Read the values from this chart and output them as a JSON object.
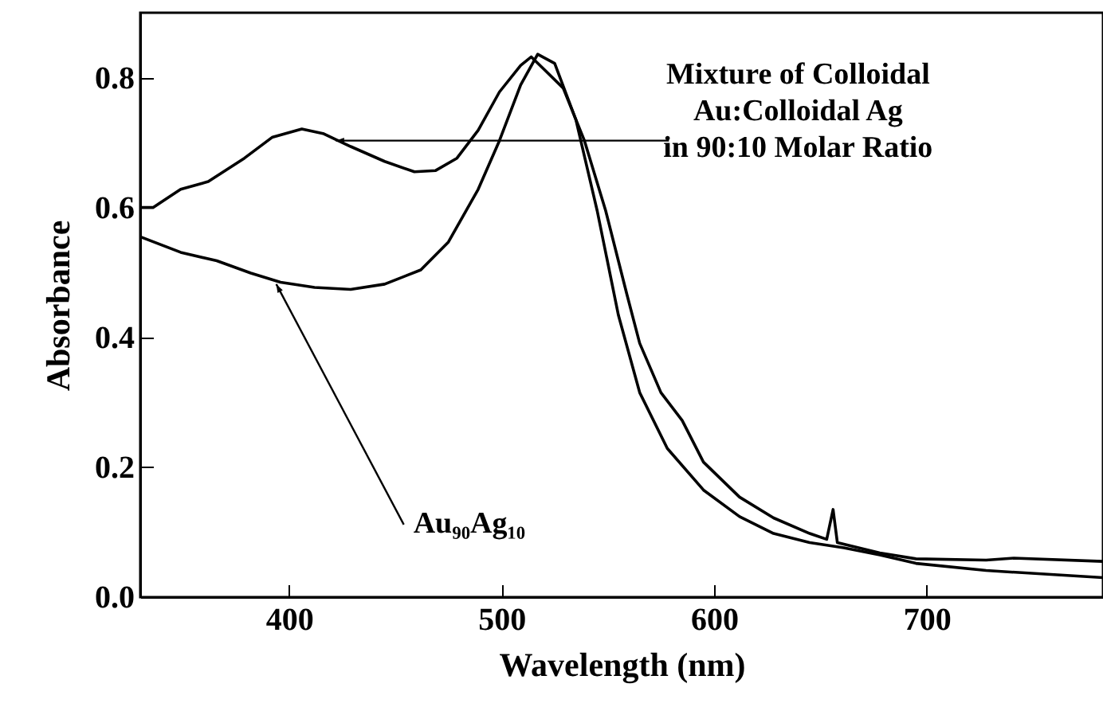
{
  "chart_data": {
    "type": "line",
    "xlabel": "Wavelength (nm)",
    "ylabel": "Absorbance",
    "xlim": [
      330,
      783
    ],
    "xticks": [
      400,
      500,
      600,
      700
    ],
    "ylim": [
      0,
      0.9
    ],
    "yticks": [
      {
        "value": 0,
        "label": "0.0"
      },
      {
        "value": 0.2,
        "label": "0.2"
      },
      {
        "value": 0.4,
        "label": "0.4"
      },
      {
        "value": 0.6,
        "label": "0.6"
      },
      {
        "value": 0.8,
        "label": "0.8"
      }
    ],
    "grid": false,
    "marker": "none",
    "line_style": "solid",
    "series": [
      {
        "color": "#000000",
        "x": [
          330,
          336,
          349,
          362,
          379,
          392,
          406,
          416,
          429,
          445,
          459,
          469,
          479,
          489,
          499,
          509,
          514,
          519,
          529,
          539,
          549,
          559,
          565,
          575,
          585,
          595,
          612,
          628,
          645,
          653,
          656,
          658,
          678,
          695,
          728,
          741,
          783
        ],
        "values": [
          0.6,
          0.6,
          0.628,
          0.64,
          0.676,
          0.708,
          0.721,
          0.714,
          0.694,
          0.671,
          0.655,
          0.657,
          0.676,
          0.719,
          0.778,
          0.819,
          0.832,
          0.816,
          0.784,
          0.703,
          0.595,
          0.466,
          0.391,
          0.315,
          0.272,
          0.208,
          0.154,
          0.122,
          0.098,
          0.089,
          0.135,
          0.084,
          0.068,
          0.059,
          0.057,
          0.06,
          0.055
        ]
      },
      {
        "color": "#000000",
        "x": [
          330,
          349,
          366,
          382,
          396,
          412,
          429,
          445,
          462,
          475,
          489,
          499,
          509,
          517,
          525,
          535,
          545,
          555,
          565,
          578,
          595,
          612,
          628,
          645,
          661,
          678,
          695,
          728,
          783
        ],
        "values": [
          0.555,
          0.531,
          0.518,
          0.499,
          0.485,
          0.477,
          0.474,
          0.482,
          0.504,
          0.547,
          0.628,
          0.703,
          0.789,
          0.836,
          0.822,
          0.735,
          0.595,
          0.434,
          0.315,
          0.229,
          0.165,
          0.124,
          0.098,
          0.084,
          0.076,
          0.065,
          0.052,
          0.041,
          0.03
        ]
      }
    ],
    "annotations": [
      {
        "text": "Mixture of Colloidal\nAu:Colloidal Ag\nin 90:10 Molar Ratio",
        "x": 422,
        "y": 0.703
      },
      {
        "text": "Au₉₀Ag₁₀",
        "x": 394,
        "y": 0.482
      }
    ]
  }
}
